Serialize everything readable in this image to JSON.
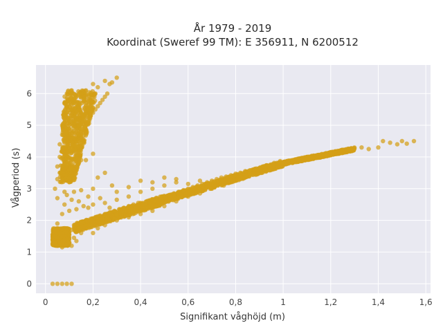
{
  "colors": {
    "background": "#ffffff",
    "plot_background": "#e9e9f1",
    "grid": "#ffffff",
    "marker": "#d4a017"
  },
  "chart_data": {
    "type": "scatter",
    "title": "År 1979 - 2019",
    "subtitle": "Koordinat (Sweref 99 TM): E 356911, N 6200512",
    "xlabel": "Signifikant våghöjd (m)",
    "ylabel": "Vågperiod (s)",
    "xlim": [
      -0.04,
      1.62
    ],
    "ylim": [
      -0.3,
      6.9
    ],
    "xticks": [
      0,
      0.2,
      0.4,
      0.6,
      0.8,
      1,
      1.2,
      1.4,
      1.6
    ],
    "xtick_labels": [
      "0",
      "0,2",
      "0,4",
      "0,6",
      "0,8",
      "1",
      "1,2",
      "1,4",
      "1,6"
    ],
    "yticks": [
      0,
      1,
      2,
      3,
      4,
      5,
      6
    ],
    "ytick_labels": [
      "0",
      "1",
      "2",
      "3",
      "4",
      "5",
      "6"
    ],
    "grid": true,
    "legend": "none",
    "series": [
      {
        "marker_color": "#d4a017",
        "points": [
          [
            0.03,
            0.0
          ],
          [
            0.05,
            0.0
          ],
          [
            0.07,
            0.0
          ],
          [
            0.09,
            0.0
          ],
          [
            0.11,
            0.0
          ],
          [
            0.03,
            1.25
          ],
          [
            0.03,
            1.4
          ],
          [
            0.03,
            1.55
          ],
          [
            0.04,
            1.3
          ],
          [
            0.04,
            1.5
          ],
          [
            0.04,
            1.7
          ],
          [
            0.05,
            1.2
          ],
          [
            0.05,
            1.45
          ],
          [
            0.05,
            1.9
          ],
          [
            0.06,
            1.3
          ],
          [
            0.06,
            1.6
          ],
          [
            0.07,
            1.15
          ],
          [
            0.07,
            1.5
          ],
          [
            0.08,
            1.4
          ],
          [
            0.08,
            1.75
          ],
          [
            0.09,
            1.25
          ],
          [
            0.09,
            1.6
          ],
          [
            0.1,
            1.3
          ],
          [
            0.1,
            1.55
          ],
          [
            0.11,
            1.2
          ],
          [
            0.11,
            1.7
          ],
          [
            0.12,
            1.45
          ],
          [
            0.12,
            1.85
          ],
          [
            0.13,
            1.35
          ],
          [
            0.13,
            1.65
          ],
          [
            0.14,
            1.75
          ],
          [
            0.15,
            1.9
          ],
          [
            0.15,
            1.6
          ],
          [
            0.16,
            1.8
          ],
          [
            0.17,
            2.0
          ],
          [
            0.18,
            1.85
          ],
          [
            0.19,
            2.05
          ],
          [
            0.2,
            1.95
          ],
          [
            0.21,
            2.1
          ],
          [
            0.22,
            1.95
          ],
          [
            0.23,
            2.15
          ],
          [
            0.24,
            2.05
          ],
          [
            0.25,
            2.2
          ],
          [
            0.26,
            2.1
          ],
          [
            0.27,
            2.25
          ],
          [
            0.28,
            2.15
          ],
          [
            0.29,
            2.3
          ],
          [
            0.3,
            2.2
          ],
          [
            0.31,
            2.35
          ],
          [
            0.32,
            2.25
          ],
          [
            0.33,
            2.4
          ],
          [
            0.34,
            2.3
          ],
          [
            0.35,
            2.45
          ],
          [
            0.36,
            2.35
          ],
          [
            0.37,
            2.5
          ],
          [
            0.38,
            2.4
          ],
          [
            0.39,
            2.55
          ],
          [
            0.4,
            2.45
          ],
          [
            0.41,
            2.55
          ],
          [
            0.42,
            2.5
          ],
          [
            0.43,
            2.6
          ],
          [
            0.44,
            2.55
          ],
          [
            0.45,
            2.65
          ],
          [
            0.46,
            2.6
          ],
          [
            0.47,
            2.7
          ],
          [
            0.48,
            2.65
          ],
          [
            0.5,
            2.75
          ],
          [
            0.52,
            2.8
          ],
          [
            0.54,
            2.85
          ],
          [
            0.56,
            2.9
          ],
          [
            0.58,
            2.95
          ],
          [
            0.6,
            3.0
          ],
          [
            0.62,
            3.05
          ],
          [
            0.64,
            3.1
          ],
          [
            0.66,
            3.15
          ],
          [
            0.68,
            3.2
          ],
          [
            0.7,
            3.25
          ],
          [
            0.72,
            3.3
          ],
          [
            0.74,
            3.35
          ],
          [
            0.76,
            3.38
          ],
          [
            0.78,
            3.42
          ],
          [
            0.8,
            3.47
          ],
          [
            0.82,
            3.5
          ],
          [
            0.84,
            3.55
          ],
          [
            0.86,
            3.58
          ],
          [
            0.88,
            3.62
          ],
          [
            0.9,
            3.65
          ],
          [
            0.92,
            3.7
          ],
          [
            0.94,
            3.72
          ],
          [
            0.96,
            3.76
          ],
          [
            0.98,
            3.8
          ],
          [
            1.0,
            3.83
          ],
          [
            1.02,
            3.87
          ],
          [
            1.04,
            3.9
          ],
          [
            1.06,
            3.92
          ],
          [
            1.08,
            3.97
          ],
          [
            1.1,
            4.0
          ],
          [
            1.12,
            4.03
          ],
          [
            1.14,
            4.05
          ],
          [
            1.16,
            4.08
          ],
          [
            1.18,
            4.12
          ],
          [
            1.2,
            4.15
          ],
          [
            1.22,
            4.18
          ],
          [
            1.25,
            4.2
          ],
          [
            1.28,
            4.25
          ],
          [
            1.3,
            4.28
          ],
          [
            1.33,
            4.3
          ],
          [
            1.36,
            4.25
          ],
          [
            1.4,
            4.3
          ],
          [
            1.42,
            4.5
          ],
          [
            1.45,
            4.45
          ],
          [
            1.48,
            4.4
          ],
          [
            1.5,
            4.5
          ],
          [
            1.52,
            4.42
          ],
          [
            1.55,
            4.5
          ],
          [
            0.2,
            1.6
          ],
          [
            0.22,
            1.75
          ],
          [
            0.25,
            1.85
          ],
          [
            0.3,
            2.0
          ],
          [
            0.35,
            2.1
          ],
          [
            0.4,
            2.2
          ],
          [
            0.45,
            2.3
          ],
          [
            0.5,
            2.45
          ],
          [
            0.55,
            2.6
          ],
          [
            0.6,
            2.75
          ],
          [
            0.65,
            2.85
          ],
          [
            0.7,
            3.0
          ],
          [
            0.75,
            3.1
          ],
          [
            0.8,
            3.25
          ],
          [
            0.25,
            2.55
          ],
          [
            0.3,
            2.65
          ],
          [
            0.35,
            2.75
          ],
          [
            0.4,
            2.9
          ],
          [
            0.45,
            3.0
          ],
          [
            0.5,
            3.1
          ],
          [
            0.55,
            3.2
          ],
          [
            0.18,
            2.4
          ],
          [
            0.2,
            2.5
          ],
          [
            0.23,
            2.7
          ],
          [
            0.27,
            2.4
          ],
          [
            0.32,
            2.15
          ],
          [
            0.07,
            2.2
          ],
          [
            0.08,
            2.5
          ],
          [
            0.09,
            2.8
          ],
          [
            0.1,
            2.3
          ],
          [
            0.11,
            2.65
          ],
          [
            0.12,
            2.9
          ],
          [
            0.13,
            2.35
          ],
          [
            0.14,
            2.6
          ],
          [
            0.15,
            2.95
          ],
          [
            0.16,
            2.45
          ],
          [
            0.18,
            2.75
          ],
          [
            0.2,
            3.0
          ],
          [
            0.22,
            3.35
          ],
          [
            0.25,
            3.5
          ],
          [
            0.3,
            2.9
          ],
          [
            0.28,
            3.1
          ],
          [
            0.35,
            3.05
          ],
          [
            0.4,
            3.25
          ],
          [
            0.45,
            3.2
          ],
          [
            0.5,
            3.35
          ],
          [
            0.55,
            3.3
          ],
          [
            0.6,
            3.15
          ],
          [
            0.65,
            3.25
          ],
          [
            0.04,
            3.0
          ],
          [
            0.05,
            3.3
          ],
          [
            0.05,
            3.7
          ],
          [
            0.06,
            4.0
          ],
          [
            0.06,
            4.4
          ],
          [
            0.07,
            3.5
          ],
          [
            0.07,
            4.7
          ],
          [
            0.07,
            5.0
          ],
          [
            0.08,
            3.8
          ],
          [
            0.08,
            4.3
          ],
          [
            0.08,
            5.2
          ],
          [
            0.09,
            4.0
          ],
          [
            0.09,
            4.6
          ],
          [
            0.09,
            5.4
          ],
          [
            0.1,
            3.6
          ],
          [
            0.1,
            4.5
          ],
          [
            0.1,
            5.0
          ],
          [
            0.1,
            5.6
          ],
          [
            0.11,
            3.9
          ],
          [
            0.11,
            4.8
          ],
          [
            0.11,
            5.3
          ],
          [
            0.12,
            4.2
          ],
          [
            0.12,
            5.0
          ],
          [
            0.12,
            5.7
          ],
          [
            0.13,
            4.5
          ],
          [
            0.13,
            5.2
          ],
          [
            0.13,
            5.9
          ],
          [
            0.14,
            4.3
          ],
          [
            0.14,
            5.0
          ],
          [
            0.14,
            5.6
          ],
          [
            0.15,
            4.7
          ],
          [
            0.15,
            5.4
          ],
          [
            0.15,
            6.0
          ],
          [
            0.16,
            4.8
          ],
          [
            0.16,
            5.3
          ],
          [
            0.16,
            5.8
          ],
          [
            0.17,
            5.0
          ],
          [
            0.17,
            5.6
          ],
          [
            0.17,
            6.1
          ],
          [
            0.18,
            5.1
          ],
          [
            0.18,
            5.5
          ],
          [
            0.19,
            5.3
          ],
          [
            0.19,
            5.8
          ],
          [
            0.2,
            5.4
          ],
          [
            0.2,
            5.9
          ],
          [
            0.21,
            5.5
          ],
          [
            0.21,
            6.0
          ],
          [
            0.22,
            5.6
          ],
          [
            0.22,
            6.2
          ],
          [
            0.23,
            5.7
          ],
          [
            0.24,
            5.8
          ],
          [
            0.25,
            5.9
          ],
          [
            0.26,
            6.0
          ],
          [
            0.27,
            6.3
          ],
          [
            0.28,
            6.35
          ],
          [
            0.3,
            6.5
          ],
          [
            0.25,
            6.4
          ],
          [
            0.2,
            6.3
          ],
          [
            0.13,
            4.0
          ],
          [
            0.15,
            3.9
          ],
          [
            0.1,
            3.3
          ],
          [
            0.08,
            2.9
          ],
          [
            0.05,
            2.7
          ],
          [
            0.09,
            6.0
          ],
          [
            0.11,
            6.1
          ],
          [
            0.07,
            4.2
          ],
          [
            0.06,
            3.5
          ],
          [
            0.12,
            3.6
          ],
          [
            0.14,
            3.8
          ],
          [
            0.17,
            3.9
          ],
          [
            0.2,
            4.1
          ]
        ],
        "dense_regions": [
          {
            "x_range": [
              0.03,
              0.1
            ],
            "y_range": [
              1.2,
              1.75
            ],
            "center_slope": 0.0
          },
          {
            "x_range": [
              0.06,
              0.2
            ],
            "y_range": [
              3.2,
              6.1
            ]
          },
          {
            "x_range": [
              0.12,
              0.5
            ],
            "band_from": [
              0.12,
              1.75
            ],
            "band_to": [
              0.5,
              2.65
            ],
            "spread": 0.28
          },
          {
            "x_range": [
              0.5,
              1.0
            ],
            "band_from": [
              0.5,
              2.65
            ],
            "band_to": [
              1.0,
              3.8
            ],
            "spread": 0.2
          },
          {
            "x_range": [
              1.0,
              1.3
            ],
            "band_from": [
              1.0,
              3.8
            ],
            "band_to": [
              1.3,
              4.25
            ],
            "spread": 0.1
          }
        ]
      }
    ]
  }
}
